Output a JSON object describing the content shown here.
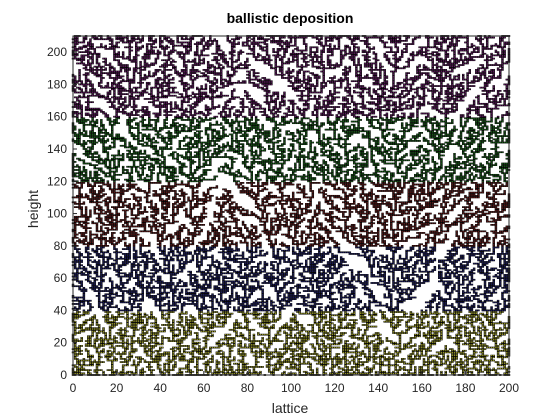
{
  "chart_data": {
    "type": "scatter",
    "title": "ballistic deposition",
    "xlabel": "lattice",
    "ylabel": "height",
    "xlim": [
      0,
      200
    ],
    "ylim": [
      0,
      210
    ],
    "xticks": [
      0,
      20,
      40,
      60,
      80,
      100,
      120,
      140,
      160,
      180,
      200
    ],
    "yticks": [
      0,
      20,
      40,
      60,
      80,
      100,
      120,
      140,
      160,
      180,
      200
    ],
    "grid": false,
    "legend": "none",
    "marker_edge_color": "#000000",
    "series": [
      {
        "band": [
          0,
          40
        ],
        "color": "#c8c832"
      },
      {
        "band": [
          40,
          80
        ],
        "color": "#23237a"
      },
      {
        "band": [
          80,
          120
        ],
        "color": "#7a1e1e"
      },
      {
        "band": [
          120,
          160
        ],
        "color": "#1e7a1e"
      },
      {
        "band": [
          160,
          210
        ],
        "color": "#7a1e7a"
      }
    ]
  }
}
